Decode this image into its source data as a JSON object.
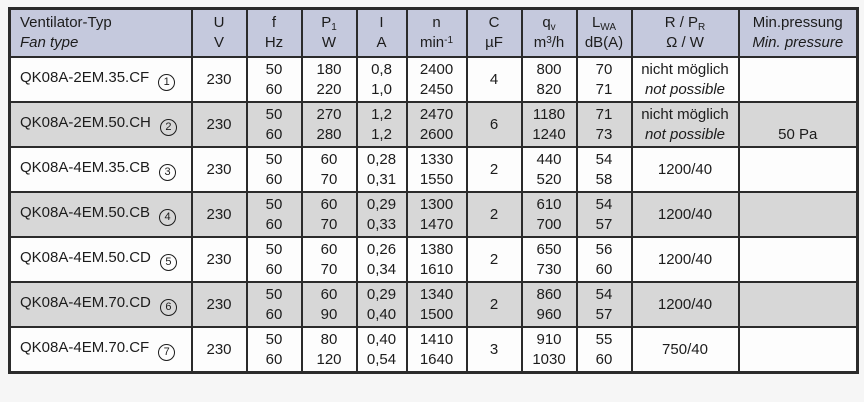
{
  "header": {
    "fan_type": {
      "de": "Ventilator-Typ",
      "en": "Fan type"
    },
    "voltage": {
      "sym": "U",
      "unit": "V"
    },
    "frequency": {
      "sym": "f",
      "unit": "Hz"
    },
    "power": {
      "sym": "P",
      "sym_sub": "1",
      "unit": "W"
    },
    "current": {
      "sym": "I",
      "unit": "A"
    },
    "speed": {
      "sym": "n",
      "unit": "min",
      "unit_sup": "-1"
    },
    "capacitor": {
      "sym": "C",
      "unit": "µF"
    },
    "airflow": {
      "sym": "q",
      "sym_sub": "v",
      "unit_pre": "m",
      "unit_sup": "3",
      "unit_post": "/h"
    },
    "sound": {
      "sym": "L",
      "sym_sub": "WA",
      "unit": "dB(A)"
    },
    "resistance": {
      "sym": "R / P",
      "sym_sub": "R",
      "unit": "Ω  / W"
    },
    "min_pressure": {
      "de": "Min.pressung",
      "en": "Min. pressure"
    }
  },
  "rows": [
    {
      "type": "QK08A-2EM.35.CF",
      "num": "1",
      "u": "230",
      "f": [
        "50",
        "60"
      ],
      "p1": [
        "180",
        "220"
      ],
      "i": [
        "0,8",
        "1,0"
      ],
      "n": [
        "2400",
        "2450"
      ],
      "c": "4",
      "qv": [
        "800",
        "820"
      ],
      "lwa": [
        "70",
        "71"
      ],
      "r": {
        "de": "nicht möglich",
        "en": "not possible"
      },
      "minp": ""
    },
    {
      "type": "QK08A-2EM.50.CH",
      "num": "2",
      "u": "230",
      "f": [
        "50",
        "60"
      ],
      "p1": [
        "270",
        "280"
      ],
      "i": [
        "1,2",
        "1,2"
      ],
      "n": [
        "2470",
        "2600"
      ],
      "c": "6",
      "qv": [
        "1180",
        "1240"
      ],
      "lwa": [
        "71",
        "73"
      ],
      "r": {
        "de": "nicht möglich",
        "en": "not possible"
      },
      "minp": "50 Pa"
    },
    {
      "type": "QK08A-4EM.35.CB",
      "num": "3",
      "u": "230",
      "f": [
        "50",
        "60"
      ],
      "p1": [
        "60",
        "70"
      ],
      "i": [
        "0,28",
        "0,31"
      ],
      "n": [
        "1330",
        "1550"
      ],
      "c": "2",
      "qv": [
        "440",
        "520"
      ],
      "lwa": [
        "54",
        "58"
      ],
      "r": "1200/40",
      "minp": ""
    },
    {
      "type": "QK08A-4EM.50.CB",
      "num": "4",
      "u": "230",
      "f": [
        "50",
        "60"
      ],
      "p1": [
        "60",
        "70"
      ],
      "i": [
        "0,29",
        "0,33"
      ],
      "n": [
        "1300",
        "1470"
      ],
      "c": "2",
      "qv": [
        "610",
        "700"
      ],
      "lwa": [
        "54",
        "57"
      ],
      "r": "1200/40",
      "minp": ""
    },
    {
      "type": "QK08A-4EM.50.CD",
      "num": "5",
      "u": "230",
      "f": [
        "50",
        "60"
      ],
      "p1": [
        "60",
        "70"
      ],
      "i": [
        "0,26",
        "0,34"
      ],
      "n": [
        "1380",
        "1610"
      ],
      "c": "2",
      "qv": [
        "650",
        "730"
      ],
      "lwa": [
        "56",
        "60"
      ],
      "r": "1200/40",
      "minp": ""
    },
    {
      "type": "QK08A-4EM.70.CD",
      "num": "6",
      "u": "230",
      "f": [
        "50",
        "60"
      ],
      "p1": [
        "60",
        "90"
      ],
      "i": [
        "0,29",
        "0,40"
      ],
      "n": [
        "1340",
        "1500"
      ],
      "c": "2",
      "qv": [
        "860",
        "960"
      ],
      "lwa": [
        "54",
        "57"
      ],
      "r": "1200/40",
      "minp": ""
    },
    {
      "type": "QK08A-4EM.70.CF",
      "num": "7",
      "u": "230",
      "f": [
        "50",
        "60"
      ],
      "p1": [
        "80",
        "120"
      ],
      "i": [
        "0,40",
        "0,54"
      ],
      "n": [
        "1410",
        "1640"
      ],
      "c": "3",
      "qv": [
        "910",
        "1030"
      ],
      "lwa": [
        "55",
        "60"
      ],
      "r": "750/40",
      "minp": ""
    }
  ]
}
